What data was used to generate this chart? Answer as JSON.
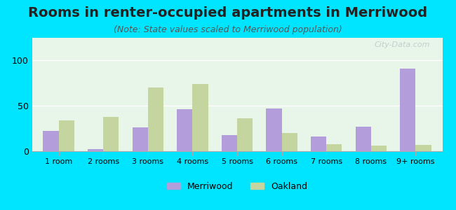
{
  "title": "Rooms in renter-occupied apartments in Merriwood",
  "subtitle": "(Note: State values scaled to Merriwood population)",
  "categories": [
    "1 room",
    "2 rooms",
    "3 rooms",
    "4 rooms",
    "5 rooms",
    "6 rooms",
    "7 rooms",
    "8 rooms",
    "9+ rooms"
  ],
  "merriwood_values": [
    22,
    2,
    26,
    46,
    18,
    47,
    16,
    27,
    91
  ],
  "oakland_values": [
    34,
    38,
    70,
    74,
    36,
    20,
    8,
    6,
    7
  ],
  "merriwood_color": "#b39ddb",
  "oakland_color": "#c5d5a0",
  "background_color": "#00e5ff",
  "plot_bg": "#e8f5e9",
  "ylim": [
    0,
    125
  ],
  "yticks": [
    0,
    50,
    100
  ],
  "bar_width": 0.35,
  "title_fontsize": 14,
  "subtitle_fontsize": 9,
  "legend_labels": [
    "Merriwood",
    "Oakland"
  ],
  "watermark": "City-Data.com"
}
